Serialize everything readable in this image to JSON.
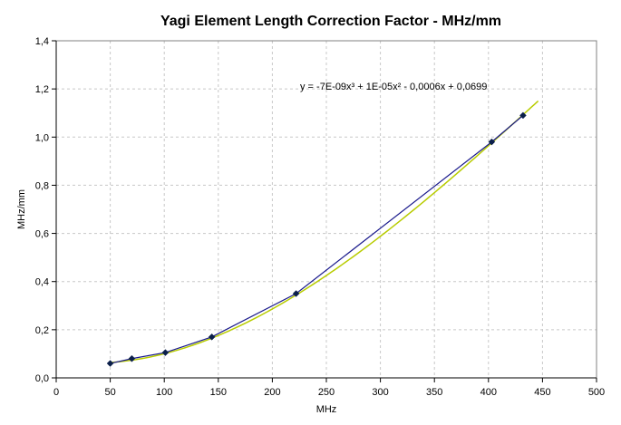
{
  "chart_data": {
    "type": "scatter",
    "title": "Yagi Element Length Correction Factor - MHz/mm",
    "xlabel": "MHz",
    "ylabel": "MHz/mm",
    "xlim": [
      0,
      500
    ],
    "ylim": [
      0,
      1.4
    ],
    "x_ticks": [
      0,
      50,
      100,
      150,
      200,
      250,
      300,
      350,
      400,
      450,
      500
    ],
    "x_tick_labels": [
      "0",
      "50",
      "100",
      "150",
      "200",
      "250",
      "300",
      "350",
      "400",
      "450",
      "500"
    ],
    "y_ticks": [
      0,
      0.2,
      0.4,
      0.6,
      0.8,
      1.0,
      1.2,
      1.4
    ],
    "y_tick_labels": [
      "0,0",
      "0,2",
      "0,4",
      "0,6",
      "0,8",
      "1,0",
      "1,2",
      "1,4"
    ],
    "grid": true,
    "series": [
      {
        "color": "#1a1a8c",
        "marker_color": "#0b1f4a",
        "x": [
          50,
          70,
          101,
          144,
          222,
          403,
          432
        ],
        "y": [
          0.06,
          0.08,
          0.105,
          0.17,
          0.35,
          0.98,
          1.09
        ]
      }
    ],
    "trendline": {
      "type": "polynomial",
      "order": 3,
      "equation": "y = -7E-09x³ + 1E-05x² - 0,0006x + 0,0699",
      "coefficients": [
        -7e-09,
        1e-05,
        -0.0006,
        0.0699
      ],
      "x_range": [
        50,
        446
      ],
      "y_end": 1.15,
      "color": "#b8cc00"
    }
  }
}
